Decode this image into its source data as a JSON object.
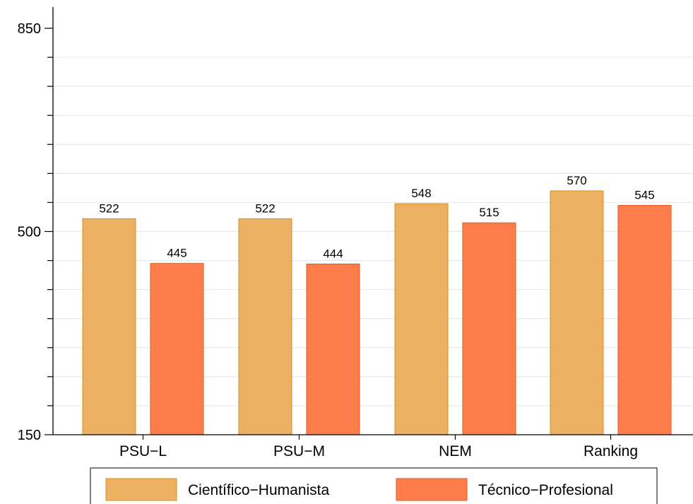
{
  "chart_data": {
    "type": "bar",
    "categories": [
      "PSU−L",
      "PSU−M",
      "NEM",
      "Ranking"
    ],
    "series": [
      {
        "name": "Científico−Humanista",
        "values": [
          522,
          522,
          548,
          570
        ],
        "color": "#EBB062",
        "stroke": "#D98E22"
      },
      {
        "name": "Técnico−Profesional",
        "values": [
          445,
          444,
          515,
          545
        ],
        "color": "#FF7D4A",
        "stroke": "#E05A1E"
      }
    ],
    "data_labels": [
      [
        "522",
        "522",
        "548",
        "570"
      ],
      [
        "445",
        "444",
        "515",
        "545"
      ]
    ],
    "yticks": [
      150,
      500,
      850
    ],
    "ytick_labels": [
      "150",
      "500",
      "850"
    ],
    "ylim": [
      150,
      850
    ],
    "minor_step": 50,
    "grid": true,
    "legend_position": "bottom"
  }
}
